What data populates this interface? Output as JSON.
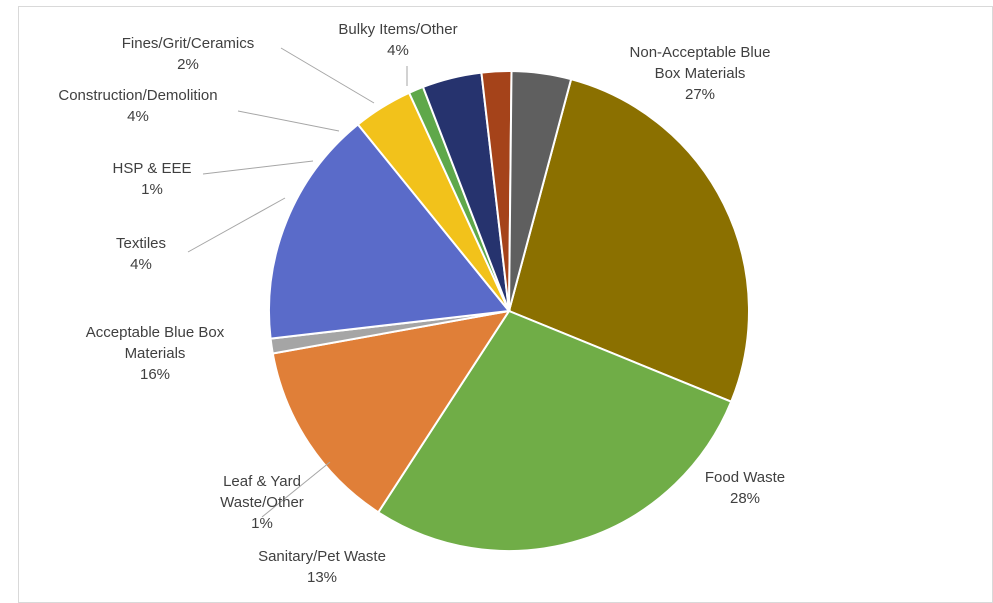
{
  "chart_data": {
    "type": "pie",
    "title": "",
    "slices": [
      {
        "label_lines": [
          "Non-Acceptable Blue",
          "Box Materials"
        ],
        "value": 27,
        "value_text": "27%",
        "color": "#8B7000"
      },
      {
        "label_lines": [
          "Food Waste"
        ],
        "value": 28,
        "value_text": "28%",
        "color": "#70AD47"
      },
      {
        "label_lines": [
          "Sanitary/Pet Waste"
        ],
        "value": 13,
        "value_text": "13%",
        "color": "#E07F38"
      },
      {
        "label_lines": [
          "Leaf & Yard",
          "Waste/Other"
        ],
        "value": 1,
        "value_text": "1%",
        "color": "#A5A5A5"
      },
      {
        "label_lines": [
          "Acceptable Blue Box",
          "Materials"
        ],
        "value": 16,
        "value_text": "16%",
        "color": "#5A6BC9"
      },
      {
        "label_lines": [
          "Textiles"
        ],
        "value": 4,
        "value_text": "4%",
        "color": "#F2C21B"
      },
      {
        "label_lines": [
          "HSP & EEE"
        ],
        "value": 1,
        "value_text": "1%",
        "color": "#5FA84A"
      },
      {
        "label_lines": [
          "Construction/Demolition"
        ],
        "value": 4,
        "value_text": "4%",
        "color": "#26336E"
      },
      {
        "label_lines": [
          "Fines/Grit/Ceramics"
        ],
        "value": 2,
        "value_text": "2%",
        "color": "#A5431A"
      },
      {
        "label_lines": [
          "Bulky Items/Other"
        ],
        "value": 4,
        "value_text": "4%",
        "color": "#5F5F5F"
      }
    ],
    "legend": "none"
  }
}
